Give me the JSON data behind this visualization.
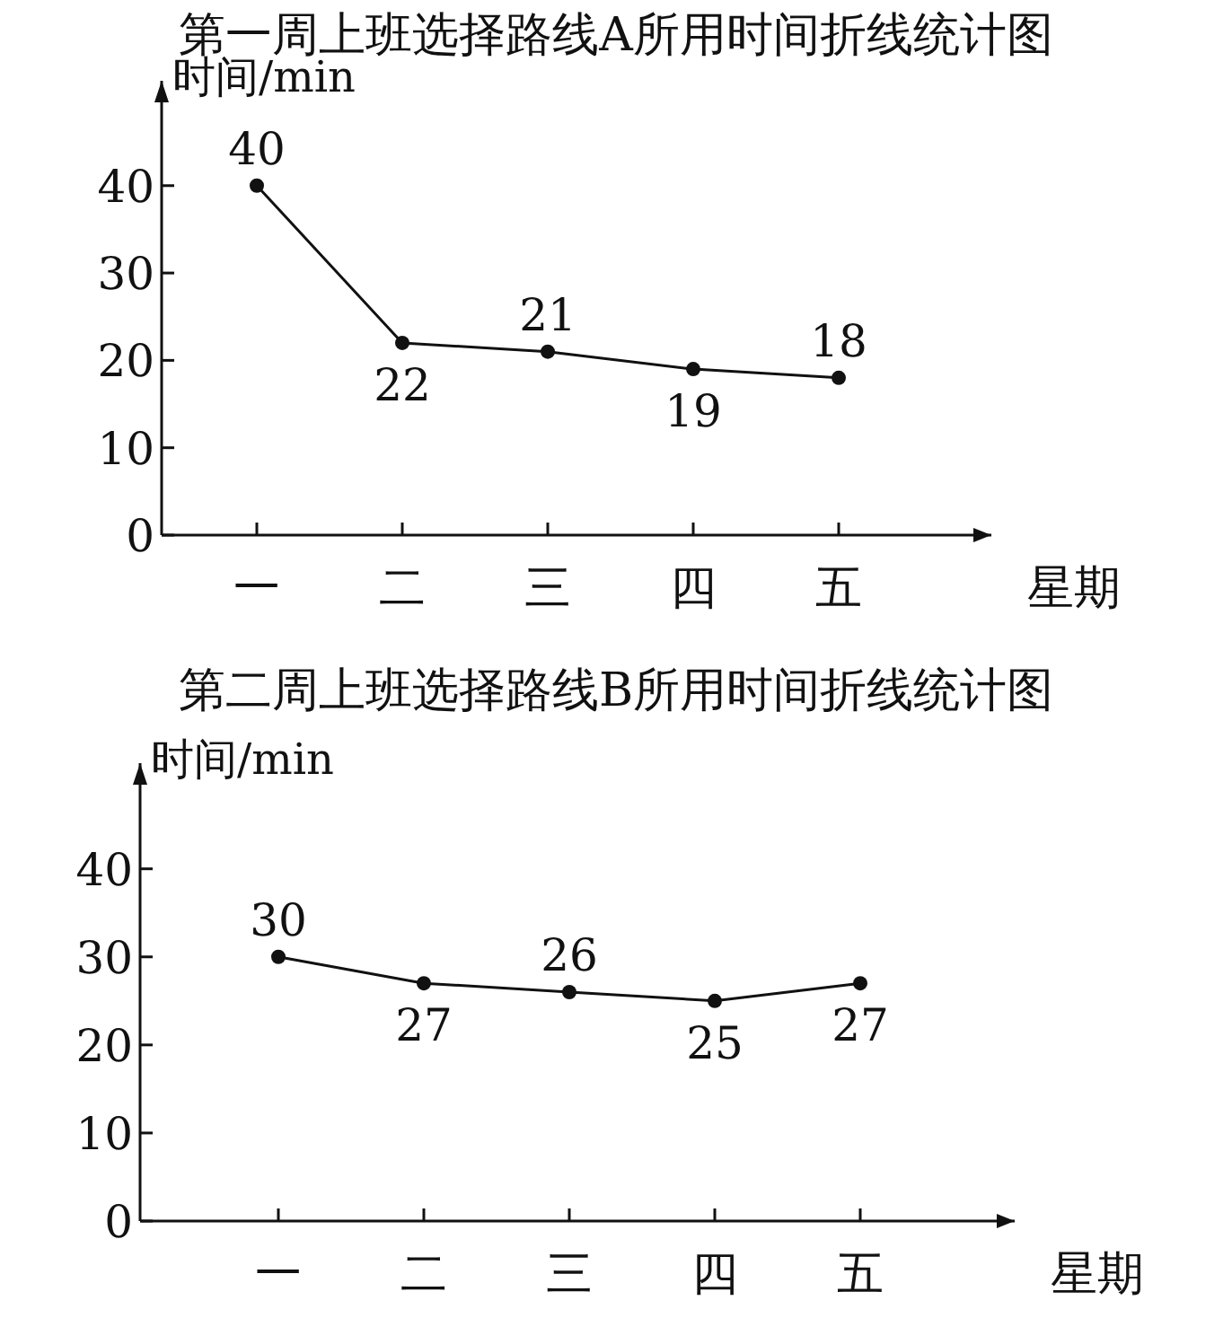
{
  "chart_data": [
    {
      "type": "line",
      "title": "第一周上班选择路线A所用时间折线统计图",
      "xlabel": "星期",
      "ylabel": "时间/min",
      "categories": [
        "一",
        "二",
        "三",
        "四",
        "五"
      ],
      "values": [
        40,
        22,
        21,
        19,
        18
      ],
      "color": "#111111",
      "ylim": [
        0,
        52
      ],
      "yticks": [
        0,
        10,
        20,
        30,
        40
      ],
      "data_labels": true,
      "marker": "circle"
    },
    {
      "type": "line",
      "title": "第二周上班选择路线B所用时间折线统计图",
      "xlabel": "星期",
      "ylabel": "时间/min",
      "categories": [
        "一",
        "二",
        "三",
        "四",
        "五"
      ],
      "values": [
        30,
        27,
        26,
        25,
        27
      ],
      "color": "#111111",
      "ylim": [
        0,
        52
      ],
      "yticks": [
        0,
        10,
        20,
        30,
        40
      ],
      "data_labels": true,
      "marker": "circle"
    }
  ]
}
